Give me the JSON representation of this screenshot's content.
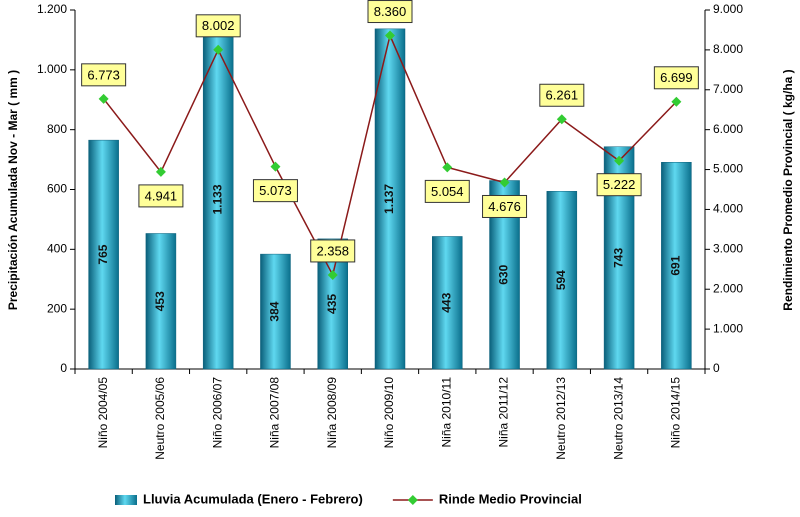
{
  "chart_data": {
    "type": "bar",
    "categories": [
      "Niño 2004/05",
      "Neutro 2005/06",
      "Niño 2006/07",
      "Niña 2007/08",
      "Niña 2008/09",
      "Niño 2009/10",
      "Niña 2010/11",
      "Niña 2011/12",
      "Neutro 2012/13",
      "Neutro 2013/14",
      "Niño 2014/15"
    ],
    "y_label": "Precipitación Acumulada Nov - Mar ( mm )",
    "y2_label": "Rendimiento Promedio Provincial ( kg/ha )",
    "ylim": [
      0,
      1200
    ],
    "yticks": [
      0,
      200,
      400,
      600,
      800,
      {
        "value": 1000,
        "label": "1.000"
      },
      {
        "value": 1200,
        "label": "1.200"
      }
    ],
    "y2lim": [
      0,
      9000
    ],
    "y2ticks": [
      0,
      {
        "value": 1000,
        "label": "1.000"
      },
      {
        "value": 2000,
        "label": "2.000"
      },
      {
        "value": 3000,
        "label": "3.000"
      },
      {
        "value": 4000,
        "label": "4.000"
      },
      {
        "value": 5000,
        "label": "5.000"
      },
      {
        "value": 6000,
        "label": "6.000"
      },
      {
        "value": 7000,
        "label": "7.000"
      },
      {
        "value": 8000,
        "label": "8.000"
      },
      {
        "value": 9000,
        "label": "9.000"
      }
    ],
    "legend": "bottom",
    "series": [
      {
        "name": "Lluvia Acumulada (Enero - Febrero)",
        "type": "bar",
        "color": "#1aa6c8",
        "values": [
          765,
          453,
          1133,
          384,
          435,
          1137,
          443,
          630,
          594,
          743,
          691
        ],
        "value_labels": [
          "765",
          "453",
          "1.133",
          "384",
          "435",
          "1.137",
          "443",
          "630",
          "594",
          "743",
          "691"
        ]
      },
      {
        "name": "Rinde Medio Provincial",
        "type": "line",
        "axis": "y2",
        "color": "#8b1a1a",
        "marker_color": "#33cc33",
        "values": [
          6773,
          4941,
          8002,
          5073,
          2358,
          8360,
          5054,
          4676,
          6261,
          5222,
          6699
        ],
        "value_labels": [
          "6.773",
          "4.941",
          "8.002",
          "5.073",
          "2.358",
          "8.360",
          "5.054",
          "4.676",
          "6.261",
          "5.222",
          "6.699"
        ]
      }
    ]
  }
}
